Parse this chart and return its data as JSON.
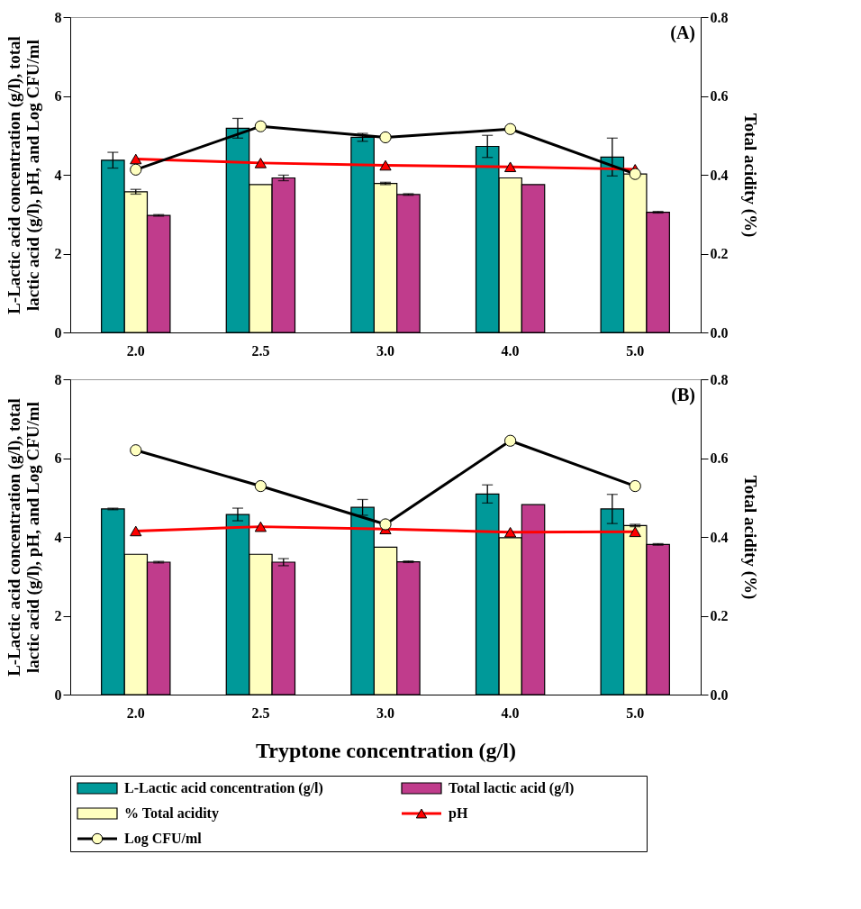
{
  "chart_data": [
    {
      "type": "bar",
      "categories": [
        "2.0",
        "2.5",
        "3.0",
        "4.0",
        "5.0"
      ],
      "ylabel": "L-Lactic acid concentration (g/l), total lactic acid (g/l), pH, and Log CFU/ml",
      "y2label": "Total acidity (%)",
      "ylim": [
        0,
        8
      ],
      "yticks": [
        0,
        2,
        4,
        6,
        8
      ],
      "y2lim": [
        0,
        0.8
      ],
      "y2ticks": [
        {
          "value": 0,
          "label": "0.0"
        },
        0.2,
        0.4,
        0.6,
        0.8
      ],
      "annotations": [
        "(A)"
      ],
      "grid": false,
      "series": [
        {
          "type": "bar",
          "color": "#009999",
          "values": [
            4.37,
            5.18,
            4.95,
            4.72,
            4.45
          ],
          "errors": [
            0.2,
            0.25,
            0.1,
            0.28,
            0.48
          ]
        },
        {
          "type": "bar",
          "axis": "y2",
          "color": "#ffffc0",
          "values": [
            0.357,
            0.375,
            0.378,
            0.392,
            0.402
          ],
          "errors": [
            0.006,
            null,
            0.003,
            null,
            null
          ]
        },
        {
          "type": "bar",
          "color": "#c03c8c",
          "values": [
            2.97,
            3.92,
            3.5,
            3.75,
            3.05
          ],
          "errors": [
            0.02,
            0.07,
            0.02,
            null,
            0.02
          ]
        },
        {
          "type": "line",
          "color": "#ff0000",
          "marker": "triangle",
          "line_style": "solid",
          "values": [
            4.4,
            4.3,
            4.24,
            4.2,
            4.14
          ]
        },
        {
          "type": "line",
          "color": "#000000",
          "marker": "circle",
          "line_style": "solid",
          "values": [
            4.13,
            5.23,
            4.95,
            5.16,
            4.02
          ]
        }
      ]
    },
    {
      "type": "bar",
      "categories": [
        "2.0",
        "2.5",
        "3.0",
        "4.0",
        "5.0"
      ],
      "xlabel": "Tryptone concentration (g/l)",
      "ylabel": "L-Lactic acid concentration (g/l), total lactic acid (g/l), pH, and Log CFU/ml",
      "y2label": "Total acidity (%)",
      "ylim": [
        0,
        8
      ],
      "yticks": [
        0,
        2,
        4,
        6,
        8
      ],
      "y2lim": [
        0,
        0.8
      ],
      "y2ticks": [
        {
          "value": 0,
          "label": "0.0"
        },
        0.2,
        0.4,
        0.6,
        0.8
      ],
      "annotations": [
        "(B)"
      ],
      "grid": false,
      "legend": "bottom",
      "series": [
        {
          "name": "L-Lactic acid concentration (g/l)",
          "type": "bar",
          "color": "#009999",
          "values": [
            4.71,
            4.57,
            4.75,
            5.09,
            4.71
          ],
          "errors": [
            0.02,
            0.16,
            0.2,
            0.23,
            0.37
          ]
        },
        {
          "name": "% Total acidity",
          "type": "bar",
          "axis": "y2",
          "color": "#ffffc0",
          "values": [
            0.356,
            0.356,
            0.374,
            0.398,
            0.429
          ],
          "errors": [
            null,
            null,
            null,
            null,
            0.003
          ]
        },
        {
          "name": "Total lactic acid (g/l)",
          "type": "bar",
          "color": "#c03c8c",
          "values": [
            3.36,
            3.36,
            3.37,
            4.82,
            3.81
          ],
          "errors": [
            0.02,
            0.09,
            0.02,
            null,
            0.02
          ]
        },
        {
          "name": "pH",
          "type": "line",
          "color": "#ff0000",
          "marker": "triangle",
          "line_style": "solid",
          "values": [
            4.15,
            4.26,
            4.2,
            4.12,
            4.13
          ]
        },
        {
          "name": "Log CFU/ml",
          "type": "line",
          "color": "#000000",
          "marker": "circle",
          "line_style": "solid",
          "values": [
            6.2,
            5.29,
            4.32,
            6.44,
            5.29
          ]
        }
      ]
    }
  ]
}
